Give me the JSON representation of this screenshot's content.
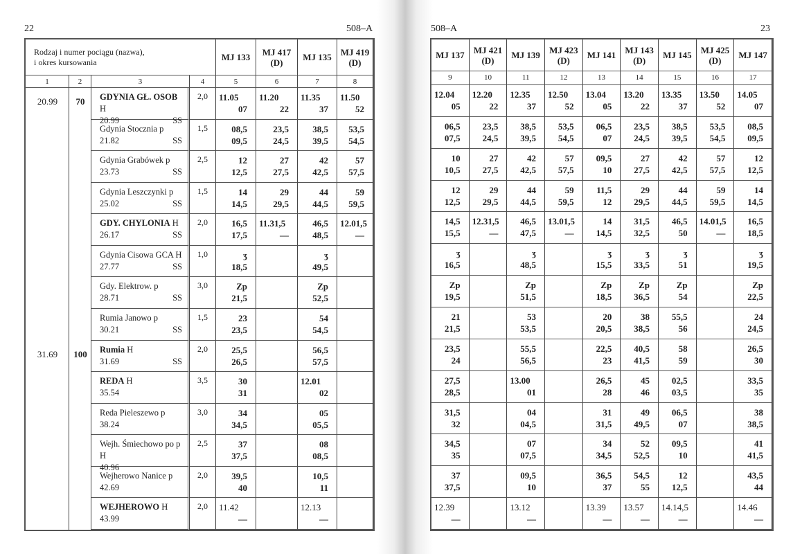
{
  "left_page": {
    "page_number": "22",
    "section": "508–A"
  },
  "right_page": {
    "page_number": "23",
    "section": "508–A"
  },
  "header_label": "Rodzaj i numer pociągu (nazwa),\ni okres kursowania",
  "column_numbers_left": [
    "1",
    "2",
    "3",
    "4"
  ],
  "side_values": [
    {
      "row": 0,
      "col1": "20.99",
      "col2": "70"
    },
    {
      "row": 8,
      "col1": "31.69",
      "col2": "100"
    }
  ],
  "stations": [
    {
      "name": "GDYNIA GŁ. OSOB",
      "type": "H",
      "km": "20.99",
      "ss": "SS",
      "bold": true,
      "col4": "2,0"
    },
    {
      "name": "Gdynia Stocznia",
      "type": "p",
      "km": "21.82",
      "ss": "SS",
      "bold": false,
      "col4": "1,5"
    },
    {
      "name": "Gdynia Grabówek",
      "type": "p",
      "km": "23.73",
      "ss": "SS",
      "bold": false,
      "col4": "2,5"
    },
    {
      "name": "Gdynia Leszczynki",
      "type": "p",
      "km": "25.02",
      "ss": "SS",
      "bold": false,
      "col4": "1,5"
    },
    {
      "name": "GDY. CHYLONIA",
      "type": "H",
      "km": "26.17",
      "ss": "SS",
      "bold": true,
      "col4": "2,0"
    },
    {
      "name": "Gdynia Cisowa GCA",
      "type": "H",
      "km": "27.77",
      "ss": "SS",
      "bold": false,
      "col4": "1,0"
    },
    {
      "name": "Gdy. Elektrow.",
      "type": "p",
      "km": "28.71",
      "ss": "SS",
      "bold": false,
      "col4": "3,0"
    },
    {
      "name": "Rumia Janowo",
      "type": "p",
      "km": "30.21",
      "ss": "SS",
      "bold": false,
      "col4": "1,5"
    },
    {
      "name": "Rumia",
      "type": "H",
      "km": "31.69",
      "ss": "SS",
      "bold": true,
      "col4": "2,0"
    },
    {
      "name": "REDA",
      "type": "H",
      "km": "35.54",
      "ss": "",
      "bold": true,
      "col4": "3,5"
    },
    {
      "name": "Reda Pieleszewo",
      "type": "p",
      "km": "38.24",
      "ss": "",
      "bold": false,
      "col4": "3,0"
    },
    {
      "name": "Wejh. Śmiechowo po",
      "type": "p H",
      "km": "40.96",
      "ss": "",
      "bold": false,
      "col4": "2,5"
    },
    {
      "name": "Wejherowo Nanice",
      "type": "p",
      "km": "42.69",
      "ss": "",
      "bold": false,
      "col4": "2,0"
    },
    {
      "name": "WEJHEROWO",
      "type": "H",
      "km": "43.99",
      "ss": "",
      "bold": true,
      "col4": "2,0"
    }
  ],
  "trains_left": [
    {
      "label": "MJ 133",
      "num": "5",
      "times": [
        [
          "11.05",
          "07"
        ],
        [
          "08,5",
          "09,5"
        ],
        [
          "12",
          "12,5"
        ],
        [
          "14",
          "14,5"
        ],
        [
          "16,5",
          "17,5"
        ],
        [
          "ʒ",
          "18,5"
        ],
        [
          "Zp",
          "21,5"
        ],
        [
          "23",
          "23,5"
        ],
        [
          "25,5",
          "26,5"
        ],
        [
          "30",
          "31"
        ],
        [
          "34",
          "34,5"
        ],
        [
          "37",
          "37,5"
        ],
        [
          "39,5",
          "40"
        ],
        [
          "11.42",
          "—"
        ]
      ]
    },
    {
      "label": "MJ 417\n(D)",
      "num": "6",
      "times": [
        [
          "11.20",
          "22"
        ],
        [
          "23,5",
          "24,5"
        ],
        [
          "27",
          "27,5"
        ],
        [
          "29",
          "29,5"
        ],
        [
          "11.31,5",
          "—"
        ],
        null,
        null,
        null,
        null,
        null,
        null,
        null,
        null,
        null
      ]
    },
    {
      "label": "MJ 135",
      "num": "7",
      "times": [
        [
          "11.35",
          "37"
        ],
        [
          "38,5",
          "39,5"
        ],
        [
          "42",
          "42,5"
        ],
        [
          "44",
          "44,5"
        ],
        [
          "46,5",
          "48,5"
        ],
        [
          "ʒ",
          "49,5"
        ],
        [
          "Zp",
          "52,5"
        ],
        [
          "54",
          "54,5"
        ],
        [
          "56,5",
          "57,5"
        ],
        [
          "12.01",
          "02"
        ],
        [
          "05",
          "05,5"
        ],
        [
          "08",
          "08,5"
        ],
        [
          "10,5",
          "11"
        ],
        [
          "12.13",
          "—"
        ]
      ]
    },
    {
      "label": "MJ 419\n(D)",
      "num": "8",
      "times": [
        [
          "11.50",
          "52"
        ],
        [
          "53,5",
          "54,5"
        ],
        [
          "57",
          "57,5"
        ],
        [
          "59",
          "59,5"
        ],
        [
          "12.01,5",
          "—"
        ],
        null,
        null,
        null,
        null,
        null,
        null,
        null,
        null,
        null
      ]
    }
  ],
  "trains_right": [
    {
      "label": "MJ 137",
      "num": "9",
      "times": [
        [
          "12.04",
          "05"
        ],
        [
          "06,5",
          "07,5"
        ],
        [
          "10",
          "10,5"
        ],
        [
          "12",
          "12,5"
        ],
        [
          "14,5",
          "15,5"
        ],
        [
          "ʒ",
          "16,5"
        ],
        [
          "Zp",
          "19,5"
        ],
        [
          "21",
          "21,5"
        ],
        [
          "23,5",
          "24"
        ],
        [
          "27,5",
          "28,5"
        ],
        [
          "31,5",
          "32"
        ],
        [
          "34,5",
          "35"
        ],
        [
          "37",
          "37,5"
        ],
        [
          "12.39",
          "—"
        ]
      ]
    },
    {
      "label": "MJ 421\n(D)",
      "num": "10",
      "times": [
        [
          "12.20",
          "22"
        ],
        [
          "23,5",
          "24,5"
        ],
        [
          "27",
          "27,5"
        ],
        [
          "29",
          "29,5"
        ],
        [
          "12.31,5",
          "—"
        ],
        null,
        null,
        null,
        null,
        null,
        null,
        null,
        null,
        null
      ]
    },
    {
      "label": "MJ 139",
      "num": "11",
      "times": [
        [
          "12.35",
          "37"
        ],
        [
          "38,5",
          "39,5"
        ],
        [
          "42",
          "42,5"
        ],
        [
          "44",
          "44,5"
        ],
        [
          "46,5",
          "47,5"
        ],
        [
          "ʒ",
          "48,5"
        ],
        [
          "Zp",
          "51,5"
        ],
        [
          "53",
          "53,5"
        ],
        [
          "55,5",
          "56,5"
        ],
        [
          "13.00",
          "01"
        ],
        [
          "04",
          "04,5"
        ],
        [
          "07",
          "07,5"
        ],
        [
          "09,5",
          "10"
        ],
        [
          "13.12",
          "—"
        ]
      ]
    },
    {
      "label": "MJ 423\n(D)",
      "num": "12",
      "times": [
        [
          "12.50",
          "52"
        ],
        [
          "53,5",
          "54,5"
        ],
        [
          "57",
          "57,5"
        ],
        [
          "59",
          "59,5"
        ],
        [
          "13.01,5",
          "—"
        ],
        null,
        null,
        null,
        null,
        null,
        null,
        null,
        null,
        null
      ]
    },
    {
      "label": "MJ 141",
      "num": "13",
      "times": [
        [
          "13.04",
          "05"
        ],
        [
          "06,5",
          "07"
        ],
        [
          "09,5",
          "10"
        ],
        [
          "11,5",
          "12"
        ],
        [
          "14",
          "14,5"
        ],
        [
          "ʒ",
          "15,5"
        ],
        [
          "Zp",
          "18,5"
        ],
        [
          "20",
          "20,5"
        ],
        [
          "22,5",
          "23"
        ],
        [
          "26,5",
          "28"
        ],
        [
          "31",
          "31,5"
        ],
        [
          "34",
          "34,5"
        ],
        [
          "36,5",
          "37"
        ],
        [
          "13.39",
          "—"
        ]
      ]
    },
    {
      "label": "MJ 143\n(D)",
      "num": "14",
      "times": [
        [
          "13.20",
          "22"
        ],
        [
          "23,5",
          "24,5"
        ],
        [
          "27",
          "27,5"
        ],
        [
          "29",
          "29,5"
        ],
        [
          "31,5",
          "32,5"
        ],
        [
          "ʒ",
          "33,5"
        ],
        [
          "Zp",
          "36,5"
        ],
        [
          "38",
          "38,5"
        ],
        [
          "40,5",
          "41,5"
        ],
        [
          "45",
          "46"
        ],
        [
          "49",
          "49,5"
        ],
        [
          "52",
          "52,5"
        ],
        [
          "54,5",
          "55"
        ],
        [
          "13.57",
          "—"
        ]
      ]
    },
    {
      "label": "MJ 145",
      "num": "15",
      "times": [
        [
          "13.35",
          "37"
        ],
        [
          "38,5",
          "39,5"
        ],
        [
          "42",
          "42,5"
        ],
        [
          "44",
          "44,5"
        ],
        [
          "46,5",
          "50"
        ],
        [
          "ʒ",
          "51"
        ],
        [
          "Zp",
          "54"
        ],
        [
          "55,5",
          "56"
        ],
        [
          "58",
          "59"
        ],
        [
          "02,5",
          "03,5"
        ],
        [
          "06,5",
          "07"
        ],
        [
          "09,5",
          "10"
        ],
        [
          "12",
          "12,5"
        ],
        [
          "14.14,5",
          "—"
        ]
      ]
    },
    {
      "label": "MJ 425\n(D)",
      "num": "16",
      "times": [
        [
          "13.50",
          "52"
        ],
        [
          "53,5",
          "54,5"
        ],
        [
          "57",
          "57,5"
        ],
        [
          "59",
          "59,5"
        ],
        [
          "14.01,5",
          "—"
        ],
        null,
        null,
        null,
        null,
        null,
        null,
        null,
        null,
        null
      ]
    },
    {
      "label": "MJ 147",
      "num": "17",
      "times": [
        [
          "14.05",
          "07"
        ],
        [
          "08,5",
          "09,5"
        ],
        [
          "12",
          "12,5"
        ],
        [
          "14",
          "14,5"
        ],
        [
          "16,5",
          "18,5"
        ],
        [
          "ʒ",
          "19,5"
        ],
        [
          "Zp",
          "22,5"
        ],
        [
          "24",
          "24,5"
        ],
        [
          "26,5",
          "30"
        ],
        [
          "33,5",
          "35"
        ],
        [
          "38",
          "38,5"
        ],
        [
          "41",
          "41,5"
        ],
        [
          "43,5",
          "44"
        ],
        [
          "14.46",
          "—"
        ]
      ]
    }
  ]
}
